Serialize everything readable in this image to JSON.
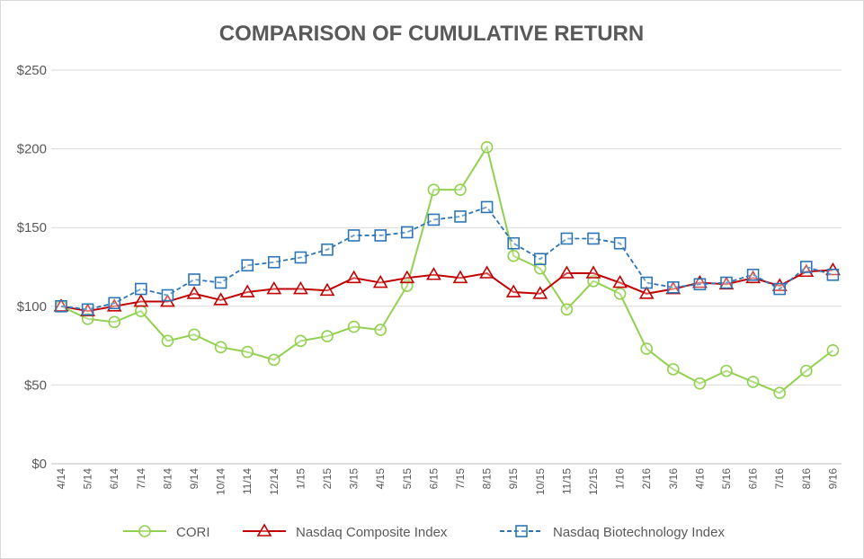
{
  "chart_data": {
    "type": "line",
    "title": "COMPARISON OF CUMULATIVE RETURN",
    "categories": [
      "4/14",
      "5/14",
      "6/14",
      "7/14",
      "8/14",
      "9/14",
      "10/14",
      "11/14",
      "12/14",
      "1/15",
      "2/15",
      "3/15",
      "4/15",
      "5/15",
      "6/15",
      "7/15",
      "8/15",
      "9/15",
      "10/15",
      "11/15",
      "12/15",
      "1/16",
      "2/16",
      "3/16",
      "4/16",
      "5/16",
      "6/16",
      "7/16",
      "8/16",
      "9/16"
    ],
    "series": [
      {
        "name": "CORI",
        "color": "#92d050",
        "marker": "circle",
        "dashed": false,
        "values": [
          100,
          92,
          90,
          97,
          78,
          82,
          74,
          71,
          66,
          78,
          81,
          87,
          85,
          113,
          174,
          174,
          201,
          132,
          124,
          98,
          116,
          108,
          73,
          60,
          51,
          59,
          52,
          45,
          59,
          72
        ]
      },
      {
        "name": "Nasdaq Composite Index",
        "color": "#c00000",
        "marker": "triangle",
        "dashed": false,
        "values": [
          100,
          97,
          100,
          103,
          103,
          108,
          104,
          109,
          111,
          111,
          110,
          118,
          115,
          118,
          120,
          118,
          121,
          109,
          108,
          121,
          121,
          115,
          108,
          111,
          115,
          114,
          118,
          113,
          122,
          123
        ]
      },
      {
        "name": "Nasdaq Biotechnology Index",
        "color": "#2e75b6",
        "marker": "square",
        "dashed": true,
        "values": [
          100,
          98,
          102,
          111,
          107,
          117,
          115,
          126,
          128,
          131,
          136,
          145,
          145,
          147,
          155,
          157,
          163,
          140,
          130,
          143,
          143,
          140,
          115,
          112,
          114,
          115,
          120,
          111,
          125,
          120
        ]
      }
    ],
    "ylim": [
      0,
      250
    ],
    "yticks": [
      {
        "value": 0,
        "label": "$0"
      },
      {
        "value": 50,
        "label": "$50"
      },
      {
        "value": 100,
        "label": "$100"
      },
      {
        "value": 150,
        "label": "$150"
      },
      {
        "value": 200,
        "label": "$200"
      },
      {
        "value": 250,
        "label": "$250"
      }
    ],
    "grid": true,
    "legend": "bottom"
  }
}
